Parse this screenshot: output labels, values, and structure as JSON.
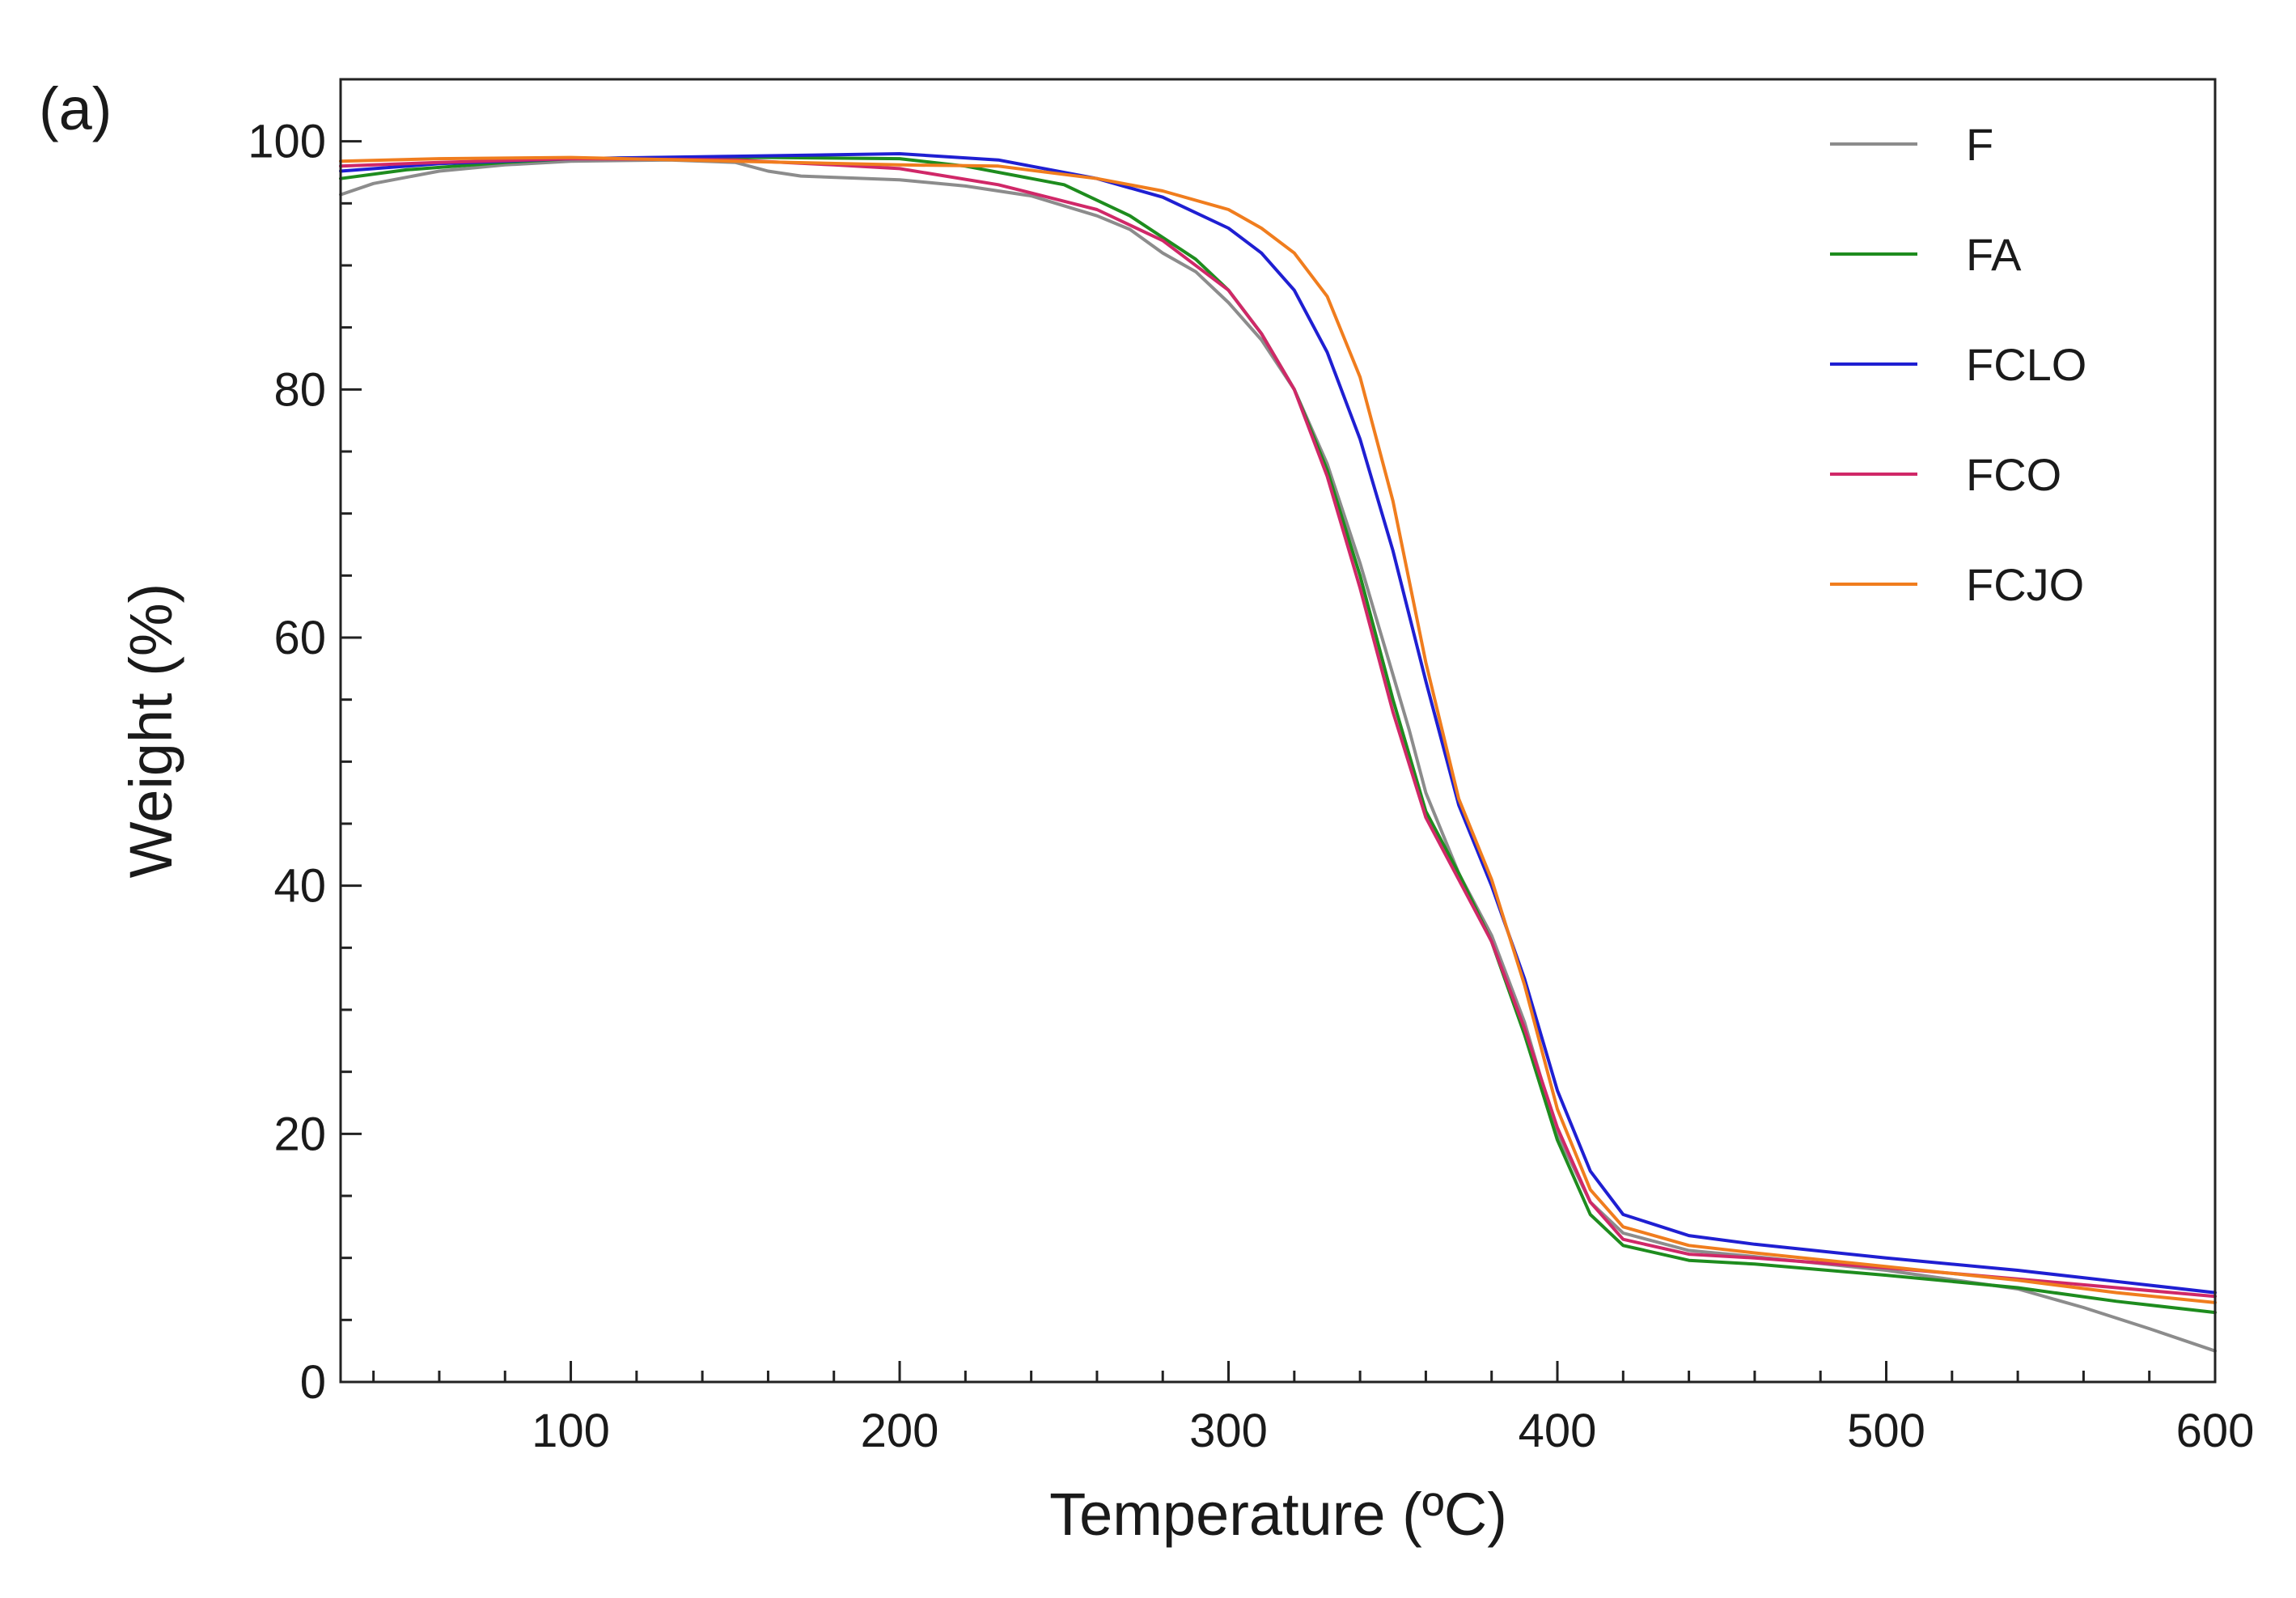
{
  "chart_data": {
    "type": "line",
    "panel_label": "(a)",
    "title": "",
    "xlabel": "Temperature (ºC)",
    "ylabel": "Weight (%)",
    "xlim": [
      30,
      600
    ],
    "ylim": [
      0,
      105
    ],
    "xticks": [
      100,
      200,
      300,
      400,
      500,
      600
    ],
    "xtick_labels": [
      "100",
      "200",
      "300",
      "400",
      "500",
      "600"
    ],
    "yticks": [
      0,
      20,
      40,
      60,
      80,
      100
    ],
    "ytick_labels": [
      "0",
      "20",
      "40",
      "60",
      "80",
      "100"
    ],
    "grid": false,
    "legend_position": "top-right",
    "series": [
      {
        "name": "F",
        "color": "#8c8c8c",
        "points": [
          [
            30,
            95.7
          ],
          [
            40,
            96.6
          ],
          [
            60,
            97.6
          ],
          [
            80,
            98.1
          ],
          [
            100,
            98.4
          ],
          [
            130,
            98.5
          ],
          [
            150,
            98.3
          ],
          [
            160,
            97.6
          ],
          [
            170,
            97.2
          ],
          [
            200,
            96.9
          ],
          [
            220,
            96.4
          ],
          [
            240,
            95.6
          ],
          [
            260,
            94.0
          ],
          [
            270,
            92.9
          ],
          [
            280,
            91.0
          ],
          [
            290,
            89.5
          ],
          [
            300,
            87.0
          ],
          [
            310,
            84.0
          ],
          [
            320,
            80.0
          ],
          [
            330,
            74.0
          ],
          [
            340,
            66.0
          ],
          [
            345,
            61.5
          ],
          [
            350,
            57.0
          ],
          [
            355,
            52.5
          ],
          [
            360,
            47.5
          ],
          [
            370,
            41.0
          ],
          [
            380,
            36.0
          ],
          [
            390,
            29.0
          ],
          [
            400,
            20.0
          ],
          [
            410,
            14.5
          ],
          [
            420,
            12.0
          ],
          [
            440,
            10.6
          ],
          [
            460,
            10.1
          ],
          [
            500,
            9.0
          ],
          [
            540,
            7.5
          ],
          [
            560,
            6.0
          ],
          [
            580,
            4.3
          ],
          [
            600,
            2.5
          ]
        ]
      },
      {
        "name": "FA",
        "color": "#1e8c1e",
        "points": [
          [
            30,
            97.0
          ],
          [
            50,
            97.7
          ],
          [
            80,
            98.3
          ],
          [
            100,
            98.6
          ],
          [
            130,
            98.7
          ],
          [
            160,
            98.7
          ],
          [
            200,
            98.6
          ],
          [
            220,
            98.0
          ],
          [
            250,
            96.5
          ],
          [
            270,
            94.0
          ],
          [
            290,
            90.5
          ],
          [
            300,
            88.0
          ],
          [
            310,
            84.5
          ],
          [
            320,
            80.0
          ],
          [
            330,
            73.5
          ],
          [
            340,
            65.0
          ],
          [
            350,
            55.0
          ],
          [
            360,
            46.0
          ],
          [
            370,
            41.0
          ],
          [
            380,
            35.5
          ],
          [
            390,
            28.0
          ],
          [
            400,
            19.5
          ],
          [
            410,
            13.5
          ],
          [
            420,
            11.0
          ],
          [
            440,
            9.8
          ],
          [
            460,
            9.5
          ],
          [
            500,
            8.6
          ],
          [
            540,
            7.6
          ],
          [
            570,
            6.5
          ],
          [
            600,
            5.6
          ]
        ]
      },
      {
        "name": "FCLO",
        "color": "#1f1fd2",
        "points": [
          [
            30,
            97.6
          ],
          [
            60,
            98.2
          ],
          [
            100,
            98.6
          ],
          [
            150,
            98.8
          ],
          [
            200,
            99.0
          ],
          [
            230,
            98.5
          ],
          [
            260,
            97.0
          ],
          [
            280,
            95.5
          ],
          [
            300,
            93.0
          ],
          [
            310,
            91.0
          ],
          [
            320,
            88.0
          ],
          [
            330,
            83.0
          ],
          [
            340,
            76.0
          ],
          [
            350,
            67.0
          ],
          [
            360,
            56.5
          ],
          [
            370,
            46.5
          ],
          [
            380,
            40.0
          ],
          [
            390,
            32.5
          ],
          [
            400,
            23.5
          ],
          [
            410,
            17.0
          ],
          [
            420,
            13.5
          ],
          [
            440,
            11.8
          ],
          [
            460,
            11.1
          ],
          [
            500,
            10.0
          ],
          [
            540,
            9.0
          ],
          [
            570,
            8.1
          ],
          [
            600,
            7.2
          ]
        ]
      },
      {
        "name": "FCO",
        "color": "#d02868",
        "points": [
          [
            30,
            98.0
          ],
          [
            60,
            98.3
          ],
          [
            100,
            98.6
          ],
          [
            150,
            98.5
          ],
          [
            180,
            98.1
          ],
          [
            200,
            97.8
          ],
          [
            230,
            96.5
          ],
          [
            260,
            94.5
          ],
          [
            280,
            92.0
          ],
          [
            300,
            88.0
          ],
          [
            310,
            84.5
          ],
          [
            320,
            80.0
          ],
          [
            330,
            73.0
          ],
          [
            340,
            64.0
          ],
          [
            350,
            54.0
          ],
          [
            360,
            45.5
          ],
          [
            370,
            40.5
          ],
          [
            380,
            35.5
          ],
          [
            390,
            28.5
          ],
          [
            400,
            20.5
          ],
          [
            410,
            14.5
          ],
          [
            420,
            11.5
          ],
          [
            440,
            10.3
          ],
          [
            460,
            10.0
          ],
          [
            500,
            9.2
          ],
          [
            540,
            8.3
          ],
          [
            570,
            7.6
          ],
          [
            600,
            6.9
          ]
        ]
      },
      {
        "name": "FCJO",
        "color": "#f07d1e",
        "points": [
          [
            30,
            98.4
          ],
          [
            60,
            98.6
          ],
          [
            100,
            98.7
          ],
          [
            150,
            98.4
          ],
          [
            200,
            98.1
          ],
          [
            230,
            98.0
          ],
          [
            260,
            97.0
          ],
          [
            280,
            96.0
          ],
          [
            300,
            94.5
          ],
          [
            310,
            93.0
          ],
          [
            320,
            91.0
          ],
          [
            330,
            87.5
          ],
          [
            340,
            81.0
          ],
          [
            350,
            71.0
          ],
          [
            360,
            58.0
          ],
          [
            370,
            47.0
          ],
          [
            380,
            40.5
          ],
          [
            390,
            32.0
          ],
          [
            400,
            22.0
          ],
          [
            410,
            15.5
          ],
          [
            420,
            12.5
          ],
          [
            440,
            11.0
          ],
          [
            460,
            10.4
          ],
          [
            500,
            9.3
          ],
          [
            540,
            8.2
          ],
          [
            570,
            7.2
          ],
          [
            600,
            6.4
          ]
        ]
      }
    ]
  }
}
